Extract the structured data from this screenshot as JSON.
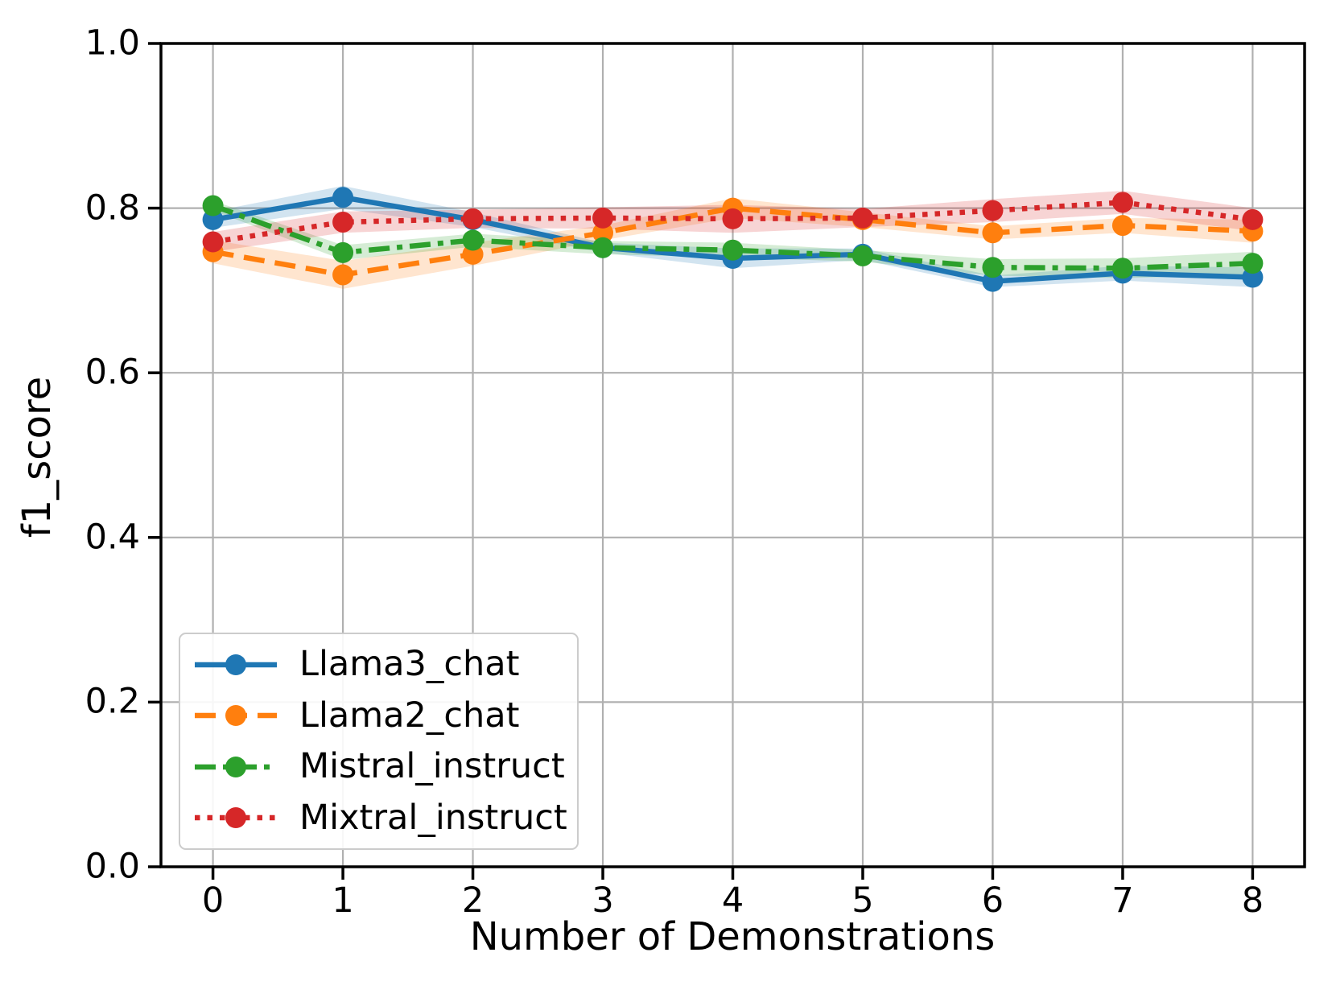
{
  "figure": {
    "background": "#ffffff"
  },
  "chart_data": {
    "type": "line",
    "title": "",
    "xlabel": "Number of Demonstrations",
    "ylabel": "f1_score",
    "x": [
      0,
      1,
      2,
      3,
      4,
      5,
      6,
      7,
      8
    ],
    "x_tick_labels": [
      "0",
      "1",
      "2",
      "3",
      "4",
      "5",
      "6",
      "7",
      "8"
    ],
    "y_tick_values": [
      0.0,
      0.2,
      0.4,
      0.6,
      0.8,
      1.0
    ],
    "y_tick_labels": [
      "0.0",
      "0.2",
      "0.4",
      "0.6",
      "0.8",
      "1.0"
    ],
    "xlim": [
      -0.4,
      8.4
    ],
    "ylim": [
      0.0,
      1.0
    ],
    "grid": true,
    "grid_color": "#b0b0b0",
    "axis_color": "#000000",
    "legend_position": "lower-left",
    "band_opacity": 0.2,
    "series": [
      {
        "name": "Llama3_chat",
        "color": "#1f77b4",
        "linestyle": "solid",
        "marker": "circle",
        "values": [
          0.786,
          0.813,
          0.786,
          0.752,
          0.739,
          0.744,
          0.711,
          0.721,
          0.716
        ],
        "band": [
          0.01,
          0.014,
          0.009,
          0.006,
          0.012,
          0.007,
          0.007,
          0.009,
          0.012
        ]
      },
      {
        "name": "Llama2_chat",
        "color": "#ff7f0e",
        "linestyle": "dashed",
        "marker": "circle",
        "values": [
          0.747,
          0.719,
          0.744,
          0.77,
          0.8,
          0.786,
          0.77,
          0.779,
          0.772
        ],
        "band": [
          0.014,
          0.017,
          0.014,
          0.009,
          0.012,
          0.009,
          0.008,
          0.009,
          0.014
        ]
      },
      {
        "name": "Mistral_instruct",
        "color": "#2ca02c",
        "linestyle": "dashdot",
        "marker": "circle",
        "values": [
          0.803,
          0.746,
          0.761,
          0.752,
          0.749,
          0.742,
          0.728,
          0.727,
          0.733
        ],
        "band": [
          0.006,
          0.009,
          0.008,
          0.008,
          0.009,
          0.007,
          0.01,
          0.012,
          0.014
        ]
      },
      {
        "name": "Mixtral_instruct",
        "color": "#d62728",
        "linestyle": "dotted",
        "marker": "circle",
        "values": [
          0.759,
          0.783,
          0.787,
          0.788,
          0.787,
          0.788,
          0.797,
          0.807,
          0.786
        ],
        "band": [
          0.012,
          0.013,
          0.011,
          0.013,
          0.017,
          0.011,
          0.014,
          0.014,
          0.014
        ]
      }
    ]
  }
}
